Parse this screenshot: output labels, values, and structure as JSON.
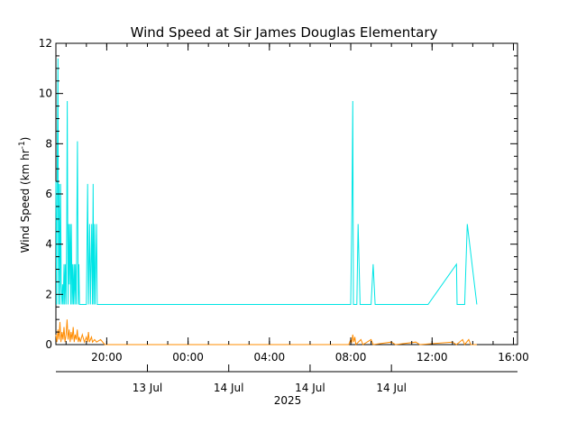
{
  "chart_data": {
    "type": "line",
    "title": "Wind Speed at Sir James Douglas Elementary",
    "ylabel_main": "Wind Speed (km hr",
    "ylabel_sup": "-1",
    "ylabel_close": ")",
    "ylim": [
      0,
      12
    ],
    "yticks": [
      "0",
      "2",
      "4",
      "6",
      "8",
      "10",
      "12"
    ],
    "xrange_hours": [
      17.5,
      16.2
    ],
    "xticks_top": [
      {
        "h": 20,
        "label": "20:00"
      },
      {
        "h": 24,
        "label": "00:00"
      },
      {
        "h": 28,
        "label": "04:00"
      },
      {
        "h": 32,
        "label": "08:00"
      },
      {
        "h": 36,
        "label": "12:00"
      },
      {
        "h": 40,
        "label": "16:00"
      }
    ],
    "xticks_date": [
      {
        "h": 22,
        "label": "13 Jul"
      },
      {
        "h": 26,
        "label": "14 Jul"
      },
      {
        "h": 30,
        "label": "14 Jul"
      },
      {
        "h": 34,
        "label": "14 Jul"
      }
    ],
    "xlabel_year": "2025",
    "series": [
      {
        "color": "#00e5e5",
        "points": [
          [
            17.5,
            6.5
          ],
          [
            17.53,
            1.6
          ],
          [
            17.56,
            6.5
          ],
          [
            17.6,
            11.4
          ],
          [
            17.63,
            1.6
          ],
          [
            17.66,
            6.4
          ],
          [
            17.7,
            1.6
          ],
          [
            17.73,
            6.4
          ],
          [
            17.76,
            2.4
          ],
          [
            17.8,
            1.6
          ],
          [
            17.83,
            2.4
          ],
          [
            17.86,
            1.6
          ],
          [
            17.9,
            3.2
          ],
          [
            17.93,
            1.6
          ],
          [
            17.96,
            3.2
          ],
          [
            18.0,
            1.6
          ],
          [
            18.03,
            4.8
          ],
          [
            18.06,
            9.7
          ],
          [
            18.1,
            1.6
          ],
          [
            18.13,
            4.8
          ],
          [
            18.16,
            2.4
          ],
          [
            18.2,
            4.8
          ],
          [
            18.23,
            1.6
          ],
          [
            18.26,
            4.8
          ],
          [
            18.3,
            1.6
          ],
          [
            18.33,
            3.2
          ],
          [
            18.36,
            1.6
          ],
          [
            18.4,
            3.2
          ],
          [
            18.43,
            1.6
          ],
          [
            18.46,
            3.2
          ],
          [
            18.5,
            1.6
          ],
          [
            18.53,
            4.8
          ],
          [
            18.56,
            8.1
          ],
          [
            18.6,
            1.6
          ],
          [
            18.63,
            3.2
          ],
          [
            18.66,
            1.6
          ],
          [
            19.0,
            1.6
          ],
          [
            19.06,
            6.4
          ],
          [
            19.1,
            1.6
          ],
          [
            19.16,
            4.8
          ],
          [
            19.2,
            1.6
          ],
          [
            19.26,
            4.8
          ],
          [
            19.3,
            1.6
          ],
          [
            19.33,
            6.4
          ],
          [
            19.36,
            1.6
          ],
          [
            19.4,
            4.8
          ],
          [
            19.43,
            1.6
          ],
          [
            19.5,
            4.8
          ],
          [
            19.53,
            1.6
          ],
          [
            32.0,
            1.6
          ],
          [
            32.06,
            5.6
          ],
          [
            32.1,
            9.7
          ],
          [
            32.13,
            1.6
          ],
          [
            32.3,
            1.6
          ],
          [
            32.36,
            4.8
          ],
          [
            32.46,
            1.6
          ],
          [
            33.0,
            1.6
          ],
          [
            33.1,
            3.2
          ],
          [
            33.2,
            1.6
          ],
          [
            35.8,
            1.6
          ],
          [
            37.2,
            3.2
          ],
          [
            37.23,
            1.6
          ],
          [
            37.6,
            1.6
          ],
          [
            37.73,
            4.8
          ],
          [
            38.2,
            1.6
          ]
        ]
      },
      {
        "color": "#ff8c00",
        "points": [
          [
            17.5,
            0.4
          ],
          [
            17.55,
            0.1
          ],
          [
            17.6,
            0.6
          ],
          [
            17.65,
            0.2
          ],
          [
            17.7,
            0.9
          ],
          [
            17.75,
            0.1
          ],
          [
            17.8,
            0.5
          ],
          [
            17.85,
            0.2
          ],
          [
            17.9,
            0.7
          ],
          [
            17.95,
            0.1
          ],
          [
            18.0,
            0.4
          ],
          [
            18.05,
            1.0
          ],
          [
            18.1,
            0.2
          ],
          [
            18.15,
            0.6
          ],
          [
            18.2,
            0.1
          ],
          [
            18.25,
            0.5
          ],
          [
            18.3,
            0.2
          ],
          [
            18.35,
            0.7
          ],
          [
            18.4,
            0.1
          ],
          [
            18.45,
            0.4
          ],
          [
            18.5,
            0.2
          ],
          [
            18.55,
            0.6
          ],
          [
            18.6,
            0.1
          ],
          [
            18.65,
            0.3
          ],
          [
            18.7,
            0.1
          ],
          [
            18.8,
            0.4
          ],
          [
            18.9,
            0.1
          ],
          [
            19.0,
            0.3
          ],
          [
            19.05,
            0.1
          ],
          [
            19.1,
            0.5
          ],
          [
            19.15,
            0.1
          ],
          [
            19.25,
            0.3
          ],
          [
            19.3,
            0.1
          ],
          [
            19.4,
            0.2
          ],
          [
            19.5,
            0.1
          ],
          [
            19.7,
            0.2
          ],
          [
            19.9,
            0.0
          ],
          [
            31.9,
            0.0
          ],
          [
            32.0,
            0.2
          ],
          [
            32.05,
            0.1
          ],
          [
            32.1,
            0.4
          ],
          [
            32.15,
            0.1
          ],
          [
            32.2,
            0.3
          ],
          [
            32.25,
            0.0
          ],
          [
            32.5,
            0.2
          ],
          [
            32.6,
            0.0
          ],
          [
            33.0,
            0.2
          ],
          [
            33.1,
            0.0
          ],
          [
            34.0,
            0.1
          ],
          [
            34.2,
            0.0
          ],
          [
            35.2,
            0.1
          ],
          [
            35.4,
            0.0
          ],
          [
            37.0,
            0.1
          ],
          [
            37.2,
            0.0
          ],
          [
            37.5,
            0.2
          ],
          [
            37.6,
            0.0
          ],
          [
            37.8,
            0.2
          ],
          [
            37.9,
            0.0
          ],
          [
            38.2,
            0.0
          ]
        ]
      }
    ]
  }
}
